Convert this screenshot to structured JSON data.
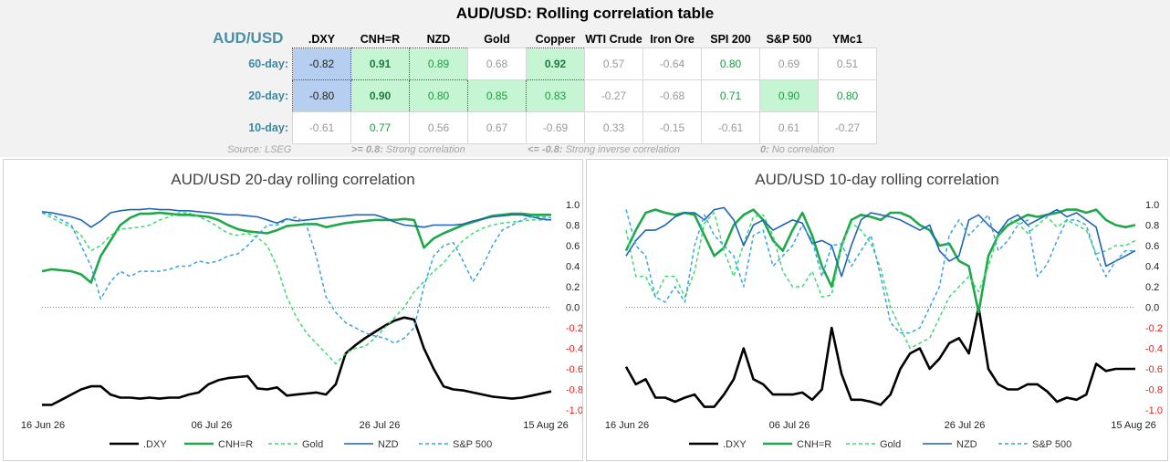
{
  "header": {
    "title": "AUD/USD: Rolling correlation table",
    "pair_label": "AUD/USD"
  },
  "table": {
    "columns": [
      ".DXY",
      "CNH=R",
      "NZD",
      "Gold",
      "Copper",
      "WTI Crude",
      "Iron Ore",
      "SPI 200",
      "S&P 500",
      "YMc1"
    ],
    "rows": [
      {
        "label": "60-day:",
        "values": [
          "-0.82",
          "0.91",
          "0.89",
          "0.68",
          "0.92",
          "0.57",
          "-0.64",
          "0.80",
          "0.69",
          "0.51"
        ]
      },
      {
        "label": "20-day:",
        "values": [
          "-0.80",
          "0.90",
          "0.80",
          "0.85",
          "0.83",
          "-0.27",
          "-0.68",
          "0.71",
          "0.90",
          "0.80"
        ]
      },
      {
        "label": "10-day:",
        "values": [
          "-0.61",
          "0.77",
          "0.56",
          "0.67",
          "-0.69",
          "0.33",
          "-0.15",
          "-0.61",
          "0.61",
          "-0.27"
        ]
      }
    ]
  },
  "notes": {
    "source": "Source: LSEG",
    "strong_key": ">= 0.8:",
    "strong_text": "Strong correlation",
    "inverse_key": "<= -0.8:",
    "inverse_text": "Strong inverse correlation",
    "none_key": "0:",
    "none_text": "No correlation"
  },
  "colors": {
    "dxy": "#000000",
    "cnh": "#1fa84a",
    "gold": "#3ddc6e",
    "nzd": "#1f64b4",
    "sp500": "#37a3e8",
    "highlight_blue": "#b6cff1",
    "highlight_green": "#c6f5d3",
    "negative_tick": "#e0201a"
  },
  "chart_data": [
    {
      "type": "line",
      "title": "AUD/USD 20-day rolling correlation",
      "x_ticks": [
        "16 Jun 26",
        "06 Jul 26",
        "26 Jul 26",
        "15 Aug 26"
      ],
      "y_ticks": [
        "1.0",
        "0.8",
        "0.6",
        "0.4",
        "0.2",
        "0.0",
        "-0.2",
        "-0.4",
        "-0.6",
        "-0.8",
        "-1.0"
      ],
      "ylim": [
        -1.0,
        1.0
      ],
      "legend_position": "bottom",
      "series": [
        {
          "name": ".DXY",
          "values": [
            -0.95,
            -0.95,
            -0.9,
            -0.85,
            -0.8,
            -0.77,
            -0.77,
            -0.85,
            -0.88,
            -0.88,
            -0.89,
            -0.88,
            -0.89,
            -0.88,
            -0.88,
            -0.85,
            -0.83,
            -0.75,
            -0.71,
            -0.69,
            -0.68,
            -0.67,
            -0.79,
            -0.8,
            -0.78,
            -0.86,
            -0.85,
            -0.84,
            -0.83,
            -0.85,
            -0.75,
            -0.45,
            -0.37,
            -0.3,
            -0.24,
            -0.18,
            -0.13,
            -0.1,
            -0.12,
            -0.4,
            -0.6,
            -0.77,
            -0.8,
            -0.81,
            -0.83,
            -0.85,
            -0.87,
            -0.88,
            -0.89,
            -0.88,
            -0.86,
            -0.84,
            -0.82
          ]
        },
        {
          "name": "CNH=R",
          "values": [
            0.35,
            0.37,
            0.36,
            0.35,
            0.32,
            0.24,
            0.5,
            0.65,
            0.8,
            0.87,
            0.91,
            0.91,
            0.92,
            0.91,
            0.9,
            0.9,
            0.89,
            0.88,
            0.85,
            0.8,
            0.76,
            0.74,
            0.73,
            0.72,
            0.75,
            0.79,
            0.8,
            0.81,
            0.81,
            0.78,
            0.8,
            0.82,
            0.83,
            0.84,
            0.85,
            0.85,
            0.85,
            0.86,
            0.85,
            0.58,
            0.67,
            0.72,
            0.76,
            0.8,
            0.83,
            0.86,
            0.89,
            0.9,
            0.91,
            0.91,
            0.9,
            0.9,
            0.9
          ]
        },
        {
          "name": "Gold",
          "values": [
            0.92,
            0.87,
            0.82,
            0.78,
            0.7,
            0.55,
            0.6,
            0.7,
            0.76,
            0.77,
            0.78,
            0.8,
            0.85,
            0.88,
            0.92,
            0.92,
            0.88,
            0.84,
            0.78,
            0.72,
            0.7,
            0.72,
            0.68,
            0.6,
            0.4,
            0.1,
            -0.1,
            -0.25,
            -0.35,
            -0.45,
            -0.55,
            -0.45,
            -0.4,
            -0.38,
            -0.3,
            -0.2,
            -0.1,
            0.0,
            0.15,
            0.25,
            0.35,
            0.43,
            0.55,
            0.65,
            0.72,
            0.77,
            0.8,
            0.82,
            0.83,
            0.84,
            0.85,
            0.85,
            0.85
          ]
        },
        {
          "name": "NZD",
          "values": [
            0.93,
            0.92,
            0.9,
            0.88,
            0.85,
            0.78,
            0.84,
            0.92,
            0.94,
            0.95,
            0.95,
            0.96,
            0.95,
            0.95,
            0.94,
            0.94,
            0.93,
            0.92,
            0.91,
            0.9,
            0.9,
            0.89,
            0.88,
            0.85,
            0.82,
            0.86,
            0.84,
            0.85,
            0.86,
            0.87,
            0.88,
            0.89,
            0.9,
            0.9,
            0.9,
            0.87,
            0.83,
            0.8,
            0.79,
            0.78,
            0.8,
            0.8,
            0.8,
            0.81,
            0.84,
            0.86,
            0.88,
            0.89,
            0.9,
            0.9,
            0.88,
            0.86,
            0.85
          ]
        },
        {
          "name": "S&P 500",
          "values": [
            0.92,
            0.9,
            0.85,
            0.8,
            0.6,
            0.4,
            0.08,
            0.25,
            0.35,
            0.3,
            0.35,
            0.35,
            0.35,
            0.37,
            0.4,
            0.4,
            0.45,
            0.43,
            0.45,
            0.5,
            0.52,
            0.6,
            0.7,
            0.8,
            0.8,
            0.85,
            0.88,
            0.8,
            0.5,
            0.1,
            -0.05,
            -0.15,
            -0.2,
            -0.25,
            -0.28,
            -0.3,
            -0.35,
            -0.3,
            -0.2,
            0.2,
            0.5,
            0.6,
            0.63,
            0.45,
            0.25,
            0.4,
            0.6,
            0.75,
            0.8,
            0.85,
            0.88,
            0.88,
            0.87
          ]
        }
      ]
    },
    {
      "type": "line",
      "title": "AUD/USD 10-day rolling correlation",
      "x_ticks": [
        "16 Jun 26",
        "06 Jul 26",
        "26 Jul 26",
        "15 Aug 26"
      ],
      "y_ticks": [
        "1.0",
        "0.8",
        "0.6",
        "0.4",
        "0.2",
        "0.0",
        "-0.2",
        "-0.4",
        "-0.6",
        "-0.8",
        "-1.0"
      ],
      "ylim": [
        -1.0,
        1.0
      ],
      "legend_position": "bottom",
      "series": [
        {
          "name": ".DXY",
          "values": [
            -0.58,
            -0.75,
            -0.7,
            -0.88,
            -0.88,
            -0.92,
            -0.88,
            -0.85,
            -0.97,
            -0.97,
            -0.85,
            -0.7,
            -0.4,
            -0.7,
            -0.75,
            -0.85,
            -0.85,
            -0.85,
            -0.83,
            -0.9,
            -0.8,
            -0.2,
            -0.65,
            -0.9,
            -0.9,
            -0.92,
            -0.95,
            -0.85,
            -0.6,
            -0.45,
            -0.4,
            -0.6,
            -0.5,
            -0.35,
            -0.3,
            -0.45,
            0.0,
            -0.6,
            -0.75,
            -0.8,
            -0.8,
            -0.75,
            -0.75,
            -0.82,
            -0.92,
            -0.88,
            -0.9,
            -0.85,
            -0.55,
            -0.62,
            -0.6,
            -0.6,
            -0.6
          ]
        },
        {
          "name": "CNH=R",
          "values": [
            0.55,
            0.75,
            0.92,
            0.95,
            0.92,
            0.9,
            0.92,
            0.9,
            0.7,
            0.5,
            0.58,
            0.8,
            0.9,
            0.95,
            0.85,
            0.65,
            0.55,
            0.75,
            0.92,
            0.7,
            0.4,
            0.2,
            0.6,
            0.85,
            0.9,
            0.88,
            0.85,
            0.92,
            0.92,
            0.88,
            0.8,
            0.75,
            0.6,
            0.62,
            0.45,
            0.4,
            -0.05,
            0.5,
            0.7,
            0.8,
            0.85,
            0.9,
            0.88,
            0.9,
            0.92,
            0.95,
            0.95,
            0.92,
            0.95,
            0.85,
            0.8,
            0.78,
            0.8
          ]
        },
        {
          "name": "Gold",
          "values": [
            0.75,
            0.3,
            0.3,
            0.1,
            0.3,
            0.3,
            0.1,
            0.35,
            0.82,
            0.92,
            0.55,
            0.3,
            0.62,
            0.88,
            0.9,
            0.7,
            0.35,
            0.2,
            0.2,
            0.35,
            0.1,
            0.12,
            0.6,
            0.82,
            0.75,
            0.62,
            0.38,
            0.0,
            -0.2,
            -0.4,
            -0.35,
            -0.3,
            -0.1,
            0.1,
            0.2,
            0.3,
            0.15,
            0.4,
            0.7,
            0.85,
            0.82,
            0.72,
            0.8,
            0.88,
            0.78,
            0.85,
            0.8,
            0.75,
            0.52,
            0.55,
            0.6,
            0.6,
            0.65
          ]
        },
        {
          "name": "NZD",
          "values": [
            0.5,
            0.65,
            0.75,
            0.75,
            0.8,
            0.88,
            0.92,
            0.92,
            0.85,
            0.95,
            0.97,
            0.85,
            0.6,
            0.8,
            0.85,
            0.75,
            0.8,
            0.85,
            0.82,
            0.62,
            0.65,
            0.6,
            0.3,
            0.6,
            0.85,
            0.92,
            0.9,
            0.88,
            0.85,
            0.8,
            0.75,
            0.8,
            0.55,
            0.45,
            0.5,
            0.85,
            0.9,
            0.8,
            0.72,
            0.85,
            0.9,
            0.8,
            0.85,
            0.9,
            0.95,
            0.88,
            0.92,
            0.85,
            0.78,
            0.4,
            0.45,
            0.5,
            0.55
          ]
        },
        {
          "name": "S&P 500",
          "values": [
            0.95,
            0.6,
            0.5,
            0.1,
            0.05,
            0.2,
            0.05,
            0.6,
            0.9,
            0.7,
            0.6,
            0.5,
            0.2,
            0.7,
            0.75,
            0.4,
            0.5,
            0.6,
            0.8,
            0.65,
            0.3,
            0.6,
            0.62,
            0.4,
            0.55,
            0.7,
            0.3,
            -0.15,
            -0.25,
            -0.25,
            -0.2,
            0.0,
            0.2,
            0.7,
            0.85,
            0.7,
            0.8,
            0.9,
            0.55,
            0.65,
            0.8,
            0.85,
            0.3,
            0.42,
            0.65,
            0.85,
            0.85,
            0.8,
            0.5,
            0.3,
            0.45,
            0.55,
            0.55
          ]
        }
      ]
    }
  ]
}
